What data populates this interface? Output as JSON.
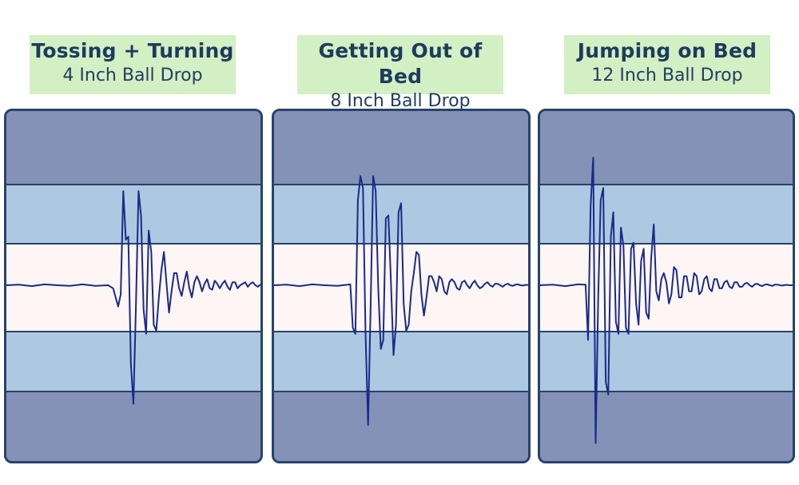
{
  "colors": {
    "label_bg": "#d3efc4",
    "label_text": "#1d3b5c",
    "outer_band": "#8392b6",
    "middle_band": "#adc8e0",
    "center_band": "#fdf6f5",
    "band_line": "#27436b",
    "wave": "#1a2a8a"
  },
  "chart_data": [
    {
      "type": "line",
      "title": "Tossing + Turning",
      "subtitle": "4 Inch Ball Drop",
      "xlabel": "",
      "ylabel": "",
      "grid": false,
      "x": [
        0,
        5,
        10,
        15,
        20,
        25,
        30,
        35,
        40,
        42,
        44,
        45,
        46,
        47,
        48,
        49,
        50,
        51,
        52,
        53,
        54,
        55,
        56,
        57,
        58,
        59,
        60,
        61,
        62,
        63,
        64,
        65,
        66,
        67,
        68,
        69,
        70,
        71,
        72,
        73,
        74,
        75,
        76,
        77,
        78,
        79,
        80,
        81,
        82,
        83,
        84,
        85,
        86,
        87,
        88,
        89,
        90,
        91,
        92,
        93,
        94,
        95,
        96,
        97,
        98,
        99,
        100
      ],
      "y": [
        0,
        0.02,
        -0.03,
        0.03,
        0,
        -0.02,
        0.03,
        -0.02,
        0,
        -0.1,
        -0.7,
        -0.3,
        3.1,
        1.5,
        1.6,
        -2.6,
        -3.9,
        -0.6,
        3.1,
        2.3,
        -0.8,
        -1.6,
        1.8,
        1.1,
        -1.3,
        -1.5,
        -0.4,
        0.5,
        1.1,
        0.1,
        -0.9,
        -0.2,
        0.4,
        0.4,
        -0.1,
        -0.35,
        0.1,
        0.45,
        -0.1,
        -0.4,
        0.1,
        0.3,
        0.1,
        -0.2,
        0.05,
        0.2,
        -0.1,
        -0.15,
        0.15,
        0.05,
        -0.1,
        0.05,
        0.15,
        -0.05,
        -0.15,
        0.1,
        0.1,
        -0.1,
        0,
        0.05,
        0.1,
        -0.05,
        0.05,
        0.1,
        0,
        -0.05,
        0.03
      ],
      "ylim": [
        -5.5,
        5.5
      ]
    },
    {
      "type": "line",
      "title": "Getting Out of Bed",
      "subtitle": "8 Inch Ball Drop",
      "xlabel": "",
      "ylabel": "",
      "grid": false,
      "x": [
        0,
        5,
        10,
        15,
        20,
        25,
        30,
        31,
        32,
        33,
        34,
        35,
        36,
        37,
        38,
        39,
        40,
        41,
        42,
        43,
        44,
        45,
        46,
        47,
        48,
        49,
        50,
        51,
        52,
        53,
        54,
        55,
        56,
        57,
        58,
        59,
        60,
        61,
        62,
        63,
        64,
        65,
        66,
        67,
        68,
        69,
        70,
        71,
        72,
        73,
        74,
        75,
        76,
        77,
        78,
        79,
        80,
        81,
        82,
        83,
        84,
        85,
        86,
        87,
        88,
        89,
        90,
        91,
        92,
        93,
        94,
        95,
        96,
        97,
        98,
        99,
        100
      ],
      "y": [
        0,
        0.02,
        -0.03,
        0.03,
        0,
        -0.02,
        0.03,
        -1.4,
        -1.6,
        2.8,
        3.6,
        3.2,
        -1.6,
        -4.6,
        -0.8,
        3.6,
        3.1,
        -0.1,
        -2.1,
        -1.8,
        2.2,
        2.3,
        0.1,
        -2.3,
        -1.3,
        2.4,
        2.7,
        -0.6,
        -1.5,
        -1.3,
        -0.2,
        0.4,
        1.1,
        1.0,
        -0.3,
        -1.0,
        -0.4,
        0.3,
        0.3,
        0.1,
        -0.2,
        0.3,
        0.2,
        -0.2,
        -0.3,
        0.1,
        0.2,
        0.1,
        -0.1,
        -0.15,
        0.1,
        0.15,
        0,
        -0.1,
        0.05,
        0.15,
        0,
        -0.1,
        -0.05,
        0.05,
        0.1,
        0,
        -0.05,
        0.05,
        0.05,
        0,
        -0.05,
        0.02,
        0.05,
        0,
        -0.02,
        0.02,
        0.03,
        0,
        -0.01,
        0.01,
        0.01
      ],
      "ylim": [
        -5.5,
        5.5
      ]
    },
    {
      "type": "line",
      "title": "Jumping on Bed",
      "subtitle": "12 Inch Ball Drop",
      "xlabel": "",
      "ylabel": "",
      "grid": false,
      "x": [
        0,
        5,
        10,
        15,
        18,
        19,
        20,
        21,
        22,
        23,
        24,
        25,
        26,
        27,
        28,
        29,
        30,
        31,
        32,
        33,
        34,
        35,
        36,
        37,
        38,
        39,
        40,
        41,
        42,
        43,
        44,
        45,
        46,
        47,
        48,
        49,
        50,
        51,
        52,
        53,
        54,
        55,
        56,
        57,
        58,
        59,
        60,
        61,
        62,
        63,
        64,
        65,
        66,
        67,
        68,
        69,
        70,
        71,
        72,
        73,
        74,
        75,
        76,
        77,
        78,
        79,
        80,
        81,
        82,
        83,
        84,
        85,
        86,
        87,
        88,
        89,
        90,
        91,
        92,
        93,
        94,
        95,
        96,
        97,
        98,
        99,
        100
      ],
      "y": [
        0,
        0.02,
        -0.03,
        0.03,
        0.02,
        -1.8,
        2.6,
        4.2,
        -5.2,
        -0.4,
        2.8,
        3.2,
        -3.2,
        -3.6,
        1.6,
        2.4,
        -1.2,
        -1.6,
        1.9,
        1.3,
        -1.4,
        -1.6,
        1.2,
        1.4,
        -0.6,
        -1.3,
        0.8,
        1.2,
        -0.9,
        -1.1,
        0.9,
        2.0,
        -0.2,
        -0.5,
        0.2,
        0.4,
        0.1,
        -0.6,
        -0.3,
        0.6,
        0.5,
        -0.4,
        -0.4,
        0.3,
        0.3,
        -0.2,
        -0.2,
        0.4,
        0.3,
        -0.3,
        -0.2,
        0.2,
        0.3,
        -0.1,
        -0.2,
        0.2,
        0.2,
        -0.1,
        -0.1,
        0.1,
        0.15,
        -0.05,
        -0.1,
        0.1,
        0.1,
        -0.05,
        -0.05,
        0.05,
        0.08,
        0,
        -0.05,
        0.03,
        0.05,
        0,
        -0.03,
        0.02,
        0.03,
        0,
        -0.02,
        0.02,
        0.02,
        0,
        -0.01,
        0.01,
        0.01,
        0,
        0
      ],
      "ylim": [
        -5.5,
        5.5
      ]
    }
  ]
}
